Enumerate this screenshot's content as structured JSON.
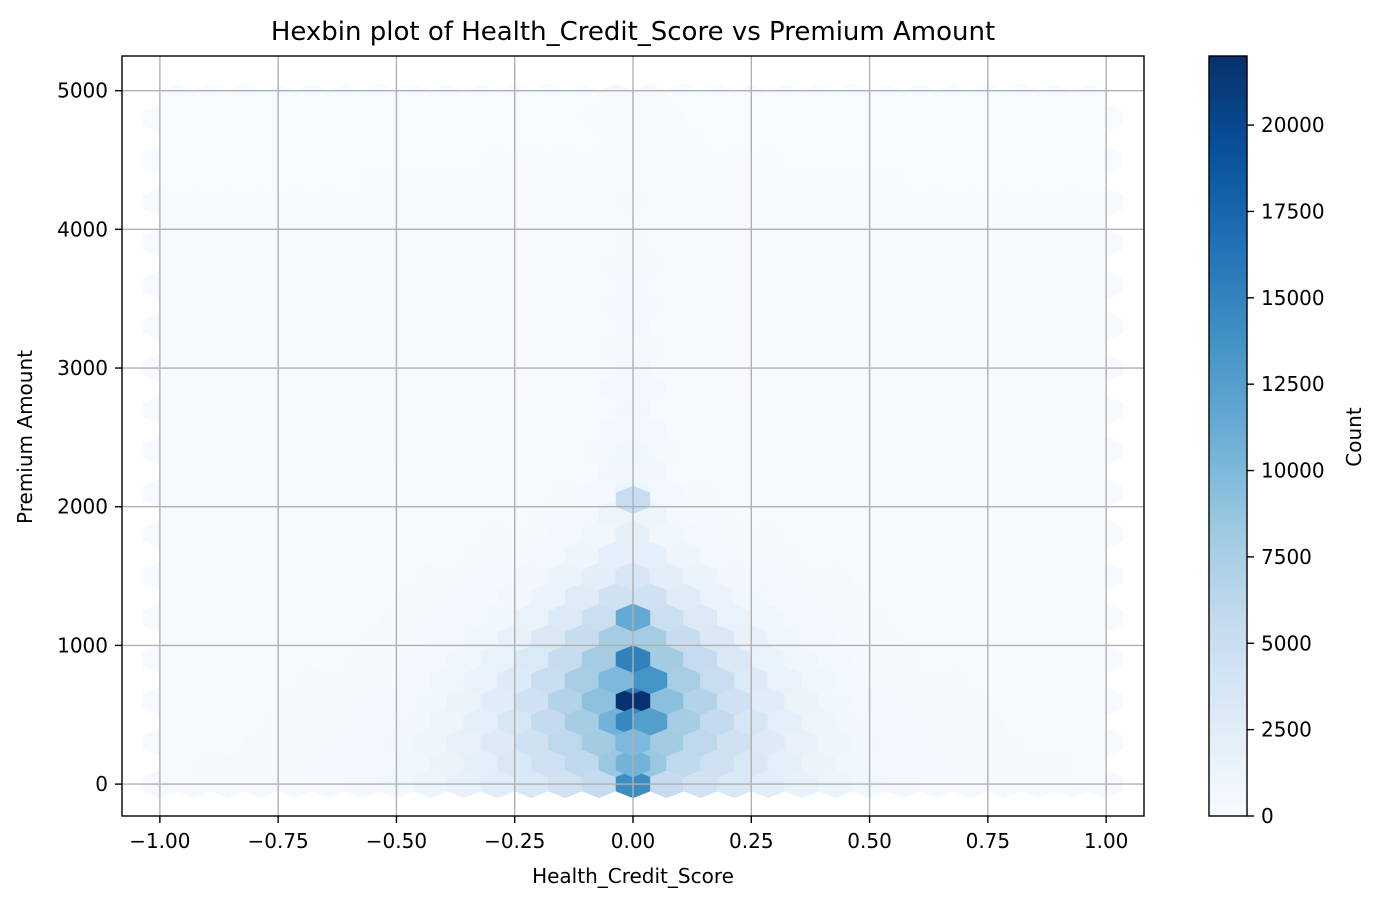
{
  "chart_data": {
    "type": "hexbin",
    "title": "Hexbin plot of Health_Credit_Score vs Premium Amount",
    "xlabel": "Health_Credit_Score",
    "ylabel": "Premium Amount",
    "xlim": [
      -1.08,
      1.08
    ],
    "ylim": [
      -230,
      5250
    ],
    "xticks": [
      "−1.00",
      "−0.75",
      "−0.50",
      "−0.25",
      "0.00",
      "0.25",
      "0.50",
      "0.75",
      "1.00"
    ],
    "xtick_values": [
      -1.0,
      -0.75,
      -0.5,
      -0.25,
      0.0,
      0.25,
      0.5,
      0.75,
      1.0
    ],
    "yticks": [
      "0",
      "1000",
      "2000",
      "3000",
      "4000",
      "5000"
    ],
    "ytick_values": [
      0,
      1000,
      2000,
      3000,
      4000,
      5000
    ],
    "grid": true,
    "colormap": "Blues",
    "colorbar": {
      "label": "Count",
      "range": [
        0,
        22000
      ],
      "ticks": [
        "0",
        "2500",
        "5000",
        "7500",
        "10000",
        "12500",
        "15000",
        "17500",
        "20000"
      ],
      "tick_values": [
        0,
        2500,
        5000,
        7500,
        10000,
        12500,
        15000,
        17500,
        20000
      ]
    },
    "hex_grid": {
      "x_centers_start": -1.0,
      "x_step": 0.0714,
      "x_count": 29,
      "y_centers_start": 0,
      "y_step": 150,
      "y_count": 34
    },
    "peaks": [
      {
        "x": 0.0,
        "y": 600,
        "count": 21800
      },
      {
        "x": 0.0,
        "y": 750,
        "count": 15800
      },
      {
        "x": 0.0,
        "y": 900,
        "count": 15200
      },
      {
        "x": 0.0,
        "y": 450,
        "count": 14600
      },
      {
        "x": 0.0,
        "y": 0,
        "count": 14200
      },
      {
        "x": 0.036,
        "y": 750,
        "count": 13600
      },
      {
        "x": 0.036,
        "y": 450,
        "count": 12500
      },
      {
        "x": 0.0,
        "y": 1200,
        "count": 11500
      },
      {
        "x": 0.0,
        "y": 150,
        "count": 10500
      },
      {
        "x": 0.0,
        "y": 300,
        "count": 10000
      },
      {
        "x": -0.036,
        "y": 750,
        "count": 10000
      },
      {
        "x": 0.0,
        "y": 2050,
        "count": 5200
      }
    ]
  }
}
